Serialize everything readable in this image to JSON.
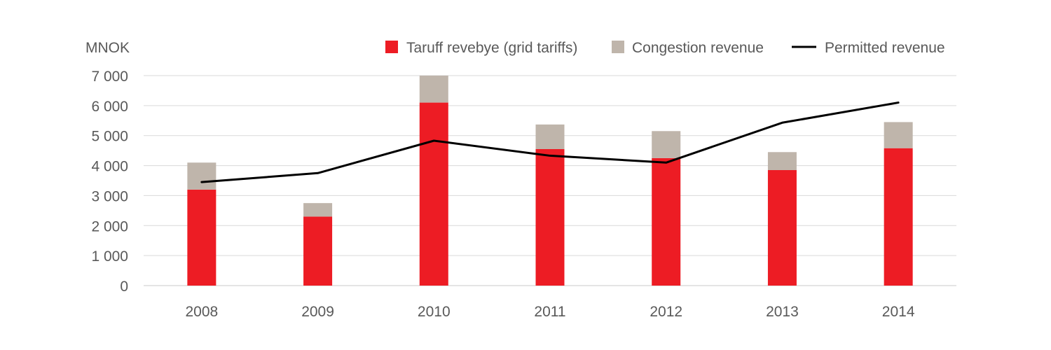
{
  "chart_data": {
    "type": "bar",
    "stacked": true,
    "unit_label": "MNOK",
    "categories": [
      "2008",
      "2009",
      "2010",
      "2011",
      "2012",
      "2013",
      "2014"
    ],
    "series": [
      {
        "name": "Taruff revebye (grid tariffs)",
        "kind": "bar",
        "color": "#ed1c24",
        "values": [
          3200,
          2300,
          6100,
          4550,
          4250,
          3850,
          4580
        ]
      },
      {
        "name": "Congestion revenue",
        "kind": "bar",
        "color": "#bfb5ab",
        "values": [
          900,
          450,
          900,
          820,
          900,
          600,
          870
        ]
      },
      {
        "name": "Permitted revenue",
        "kind": "line",
        "color": "#000000",
        "values": [
          3450,
          3750,
          4830,
          4330,
          4100,
          5430,
          6100
        ]
      }
    ],
    "y_ticks": [
      "0",
      "1 000",
      "2 000",
      "3 000",
      "4 000",
      "5 000",
      "6 000",
      "7 000"
    ],
    "ylim": [
      0,
      7000
    ],
    "grid": true,
    "legend_position": "top-right"
  }
}
